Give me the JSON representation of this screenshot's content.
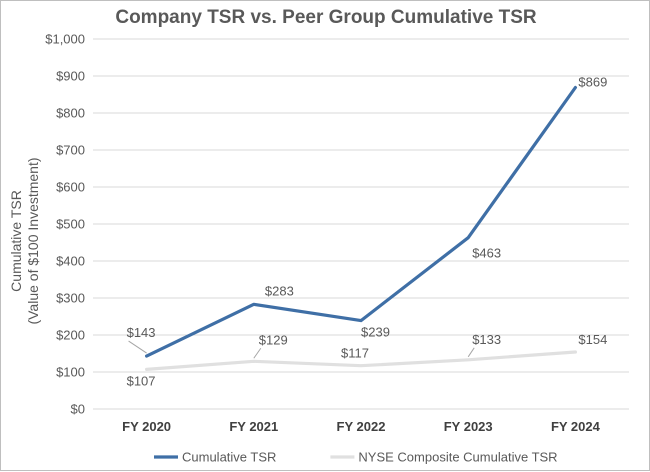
{
  "chart_data": {
    "type": "line",
    "title": "Company TSR vs. Peer Group Cumulative TSR",
    "xlabel": "",
    "ylabel": "Cumulative TSR",
    "ylabel_sub": "(Value of $100 Investment)",
    "categories": [
      "FY 2020",
      "FY 2021",
      "FY 2022",
      "FY 2023",
      "FY 2024"
    ],
    "ylim": [
      0,
      1000
    ],
    "yticks": [
      0,
      100,
      200,
      300,
      400,
      500,
      600,
      700,
      800,
      900,
      1000
    ],
    "ytick_labels": [
      "$0",
      "$100",
      "$200",
      "$300",
      "$400",
      "$500",
      "$600",
      "$700",
      "$800",
      "$900",
      "$1,000"
    ],
    "grid": true,
    "legend_position": "bottom",
    "series": [
      {
        "name": "Cumulative TSR",
        "color": "#3f6fa6",
        "values": [
          143,
          283,
          239,
          463,
          869
        ],
        "value_labels": [
          "$143",
          "$283",
          "$239",
          "$463",
          "$869"
        ]
      },
      {
        "name": "NYSE Composite Cumulative TSR",
        "color": "#e0e0e0",
        "values": [
          107,
          129,
          117,
          133,
          154
        ],
        "value_labels": [
          "$107",
          "$129",
          "$117",
          "$133",
          "$154"
        ]
      }
    ]
  }
}
